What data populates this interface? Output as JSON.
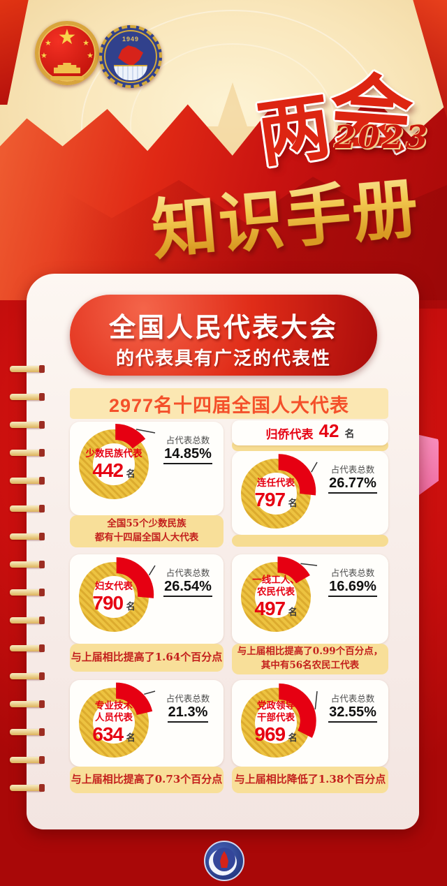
{
  "meta": {
    "event_char1": "两",
    "event_char2": "会",
    "year": "2023",
    "title": "知识手册",
    "emblems": [
      "prc-national-emblem",
      "cppcc-emblem-1949"
    ]
  },
  "banner": {
    "line1": "全国人民代表大会",
    "line2": "的代表具有广泛的代表性"
  },
  "panel": {
    "heading": "2977名十四届全国人大代表",
    "share_label": "占代表总数",
    "overseas": {
      "label": "归侨代表",
      "value": "42",
      "unit": "名"
    },
    "tiles": [
      {
        "title_lines": [
          "少数民族代表"
        ],
        "value": "442",
        "unit": "名",
        "percent_display": "14.85%",
        "percent": 14.85,
        "note_lines": [
          "全国55个少数民族",
          "都有十四届全国人大代表"
        ]
      },
      {
        "title_lines": [
          "连任代表"
        ],
        "value": "797",
        "unit": "名",
        "percent_display": "26.77%",
        "percent": 26.77,
        "note_lines": []
      },
      {
        "title_lines": [
          "妇女代表"
        ],
        "value": "790",
        "unit": "名",
        "percent_display": "26.54%",
        "percent": 26.54,
        "note_lines": [
          "与上届相比提高了1.64个百分点"
        ]
      },
      {
        "title_lines": [
          "一线工人、",
          "农民代表"
        ],
        "value": "497",
        "unit": "名",
        "percent_display": "16.69%",
        "percent": 16.69,
        "note_lines": [
          "与上届相比提高了0.99个百分点，",
          "其中有56名农民工代表"
        ]
      },
      {
        "title_lines": [
          "专业技术",
          "人员代表"
        ],
        "value": "634",
        "unit": "名",
        "percent_display": "21.3%",
        "percent": 21.3,
        "note_lines": [
          "与上届相比提高了0.73个百分点"
        ]
      },
      {
        "title_lines": [
          "党政领导",
          "干部代表"
        ],
        "value": "969",
        "unit": "名",
        "percent_display": "32.55%",
        "percent": 32.55,
        "note_lines": [
          "与上届相比降低了1.38个百分点"
        ]
      }
    ]
  },
  "footer": {
    "logo": "xinhua-news-agency-emblem"
  },
  "colors": {
    "background_red": "#c40d0d",
    "accent_red": "#e60012",
    "donut_gold": "#edc341",
    "note_band": "#f8df99",
    "note_text": "#c3201d",
    "heading_band": "#fbe7b2",
    "heading_text": "#f4502a",
    "tab_pink": "#f990bd"
  },
  "chart_data": {
    "type": "pie",
    "title": "2977名十四届全国人大代表",
    "total": 2977,
    "unit": "名",
    "share_label": "占代表总数",
    "charts": [
      {
        "type": "donut",
        "title": "少数民族代表",
        "value": 442,
        "percent": 14.85,
        "note": "全国55个少数民族都有十四届全国人大代表"
      },
      {
        "type": "stat",
        "title": "归侨代表",
        "value": 42,
        "percent": null,
        "note": ""
      },
      {
        "type": "donut",
        "title": "连任代表",
        "value": 797,
        "percent": 26.77,
        "note": ""
      },
      {
        "type": "donut",
        "title": "妇女代表",
        "value": 790,
        "percent": 26.54,
        "note": "与上届相比提高了1.64个百分点"
      },
      {
        "type": "donut",
        "title": "一线工人、农民代表",
        "value": 497,
        "percent": 16.69,
        "note": "与上届相比提高了0.99个百分点，其中有56名农民工代表"
      },
      {
        "type": "donut",
        "title": "专业技术人员代表",
        "value": 634,
        "percent": 21.3,
        "note": "与上届相比提高了0.73个百分点"
      },
      {
        "type": "donut",
        "title": "党政领导干部代表",
        "value": 969,
        "percent": 32.55,
        "note": "与上届相比降低了1.38个百分点"
      }
    ],
    "series_colors": {
      "slice": "#e60012",
      "remainder": "#edc341"
    }
  }
}
